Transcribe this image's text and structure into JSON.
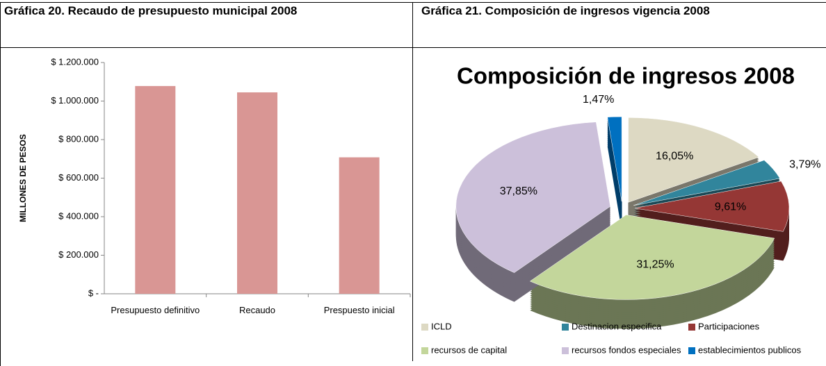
{
  "table": {
    "headers": [
      "Gráfica 20. Recaudo de presupuesto municipal 2008",
      "Gráfica 21. Composición de ingresos vigencia 2008"
    ]
  },
  "chart_data": [
    {
      "type": "bar",
      "y_label": "MILLONES DE PESOS",
      "categories": [
        "Presupuesto definitivo",
        "Recaudo",
        "Prespuesto inicial"
      ],
      "values": [
        1078000,
        1045000,
        708000
      ],
      "color": "#d99694",
      "ylim": [
        0,
        1200000
      ],
      "yticks": [
        {
          "value": 0,
          "label": "$ -"
        },
        {
          "value": 200000,
          "label": "$ 200.000"
        },
        {
          "value": 400000,
          "label": "$ 400.000"
        },
        {
          "value": 600000,
          "label": "$ 600.000"
        },
        {
          "value": 800000,
          "label": "$ 800.000"
        },
        {
          "value": 1000000,
          "label": "$ 1.000.000"
        },
        {
          "value": 1200000,
          "label": "$ 1.200.000"
        }
      ]
    },
    {
      "type": "pie",
      "title": "Composición de ingresos 2008",
      "categories": [
        "ICLD",
        "Destinacion especifica",
        "Participaciones",
        "recursos de capital",
        "recursos fondos especiales",
        "establecimientos publicos"
      ],
      "values": [
        16.05,
        3.79,
        9.61,
        31.25,
        37.85,
        1.47
      ],
      "value_labels": [
        "16,05%",
        "3,79%",
        "9,61%",
        "31,25%",
        "37,85%",
        "1,47%"
      ],
      "colors": [
        "#ddd9c3",
        "#31859c",
        "#953735",
        "#c3d69b",
        "#ccc0da",
        "#0070c0"
      ]
    }
  ]
}
